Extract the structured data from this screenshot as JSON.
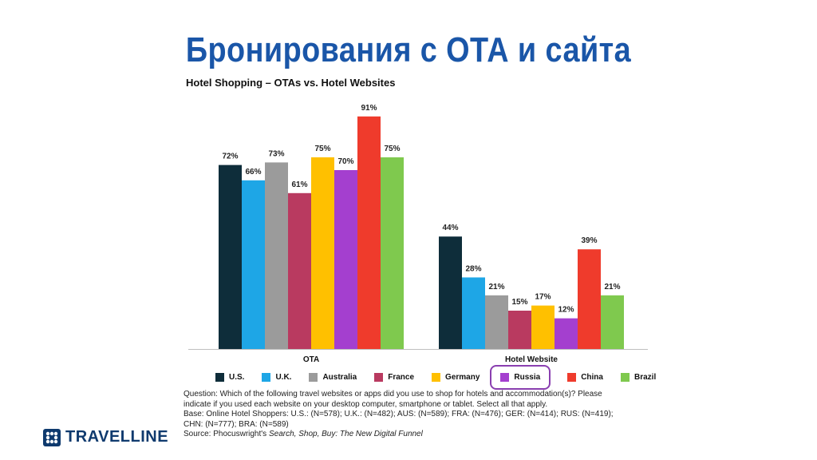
{
  "slide": {
    "title": "Бронирования с ОТА и сайта"
  },
  "footnote": {
    "lines": [
      "Question: Which of the following travel websites or apps did you use to shop for hotels and accommodation(s)? Please",
      "indicate if you used each website on your desktop computer, smartphone or tablet. Select all that apply.",
      "Base: Online Hotel Shoppers: U.S.: (N=578); U.K.: (N=482); AUS: (N=589); FRA: (N=476); GER: (N=414); RUS: (N=419);",
      "CHN: (N=777); BRA: (N=589)"
    ],
    "source_prefix": "Source: Phocuswright's ",
    "source_name": "Search, Shop, Buy: The New Digital Funnel"
  },
  "logo": {
    "text": "TRAVELLINE",
    "icon": "travelline-grid-icon",
    "color": "#0f3a6e"
  },
  "chart_data": {
    "type": "bar",
    "title": "Hotel Shopping – OTAs vs. Hotel Websites",
    "categories": [
      "OTA",
      "Hotel Website"
    ],
    "value_suffix": "%",
    "ylim": [
      0,
      100
    ],
    "grid": false,
    "legend_position": "bottom",
    "highlighted_series": "Russia",
    "series": [
      {
        "name": "U.S.",
        "color": "#0e2d3a",
        "values": [
          72,
          44
        ]
      },
      {
        "name": "U.K.",
        "color": "#1ea6e6",
        "values": [
          66,
          28
        ]
      },
      {
        "name": "Australia",
        "color": "#9b9b9b",
        "values": [
          73,
          21
        ]
      },
      {
        "name": "France",
        "color": "#b93a60",
        "values": [
          61,
          15
        ]
      },
      {
        "name": "Germany",
        "color": "#ffc000",
        "values": [
          75,
          17
        ]
      },
      {
        "name": "Russia",
        "color": "#a43fcf",
        "values": [
          70,
          12
        ]
      },
      {
        "name": "China",
        "color": "#ef3b2c",
        "values": [
          91,
          39
        ]
      },
      {
        "name": "Brazil",
        "color": "#7fc94e",
        "values": [
          75,
          21
        ]
      }
    ]
  }
}
